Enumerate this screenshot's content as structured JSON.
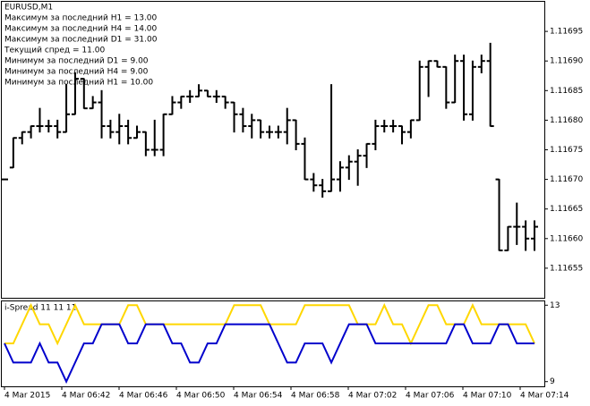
{
  "chart_data": [
    {
      "type": "ohlc",
      "title": "EURUSD,M1",
      "info_lines": [
        "Максимум за последний H1 = 13.00",
        "Максимум за последний H4 = 14.00",
        "Максимум за последний D1 = 31.00",
        "Текущий спред = 11.00",
        "Минимум за последний D1 = 9.00",
        "Минимум за последний H4 = 9.00",
        "Минимум за последний H1 = 10.00"
      ],
      "color": "#000000",
      "open": [
        1.1167,
        1.11672,
        1.11677,
        1.11678,
        1.11679,
        1.11679,
        1.11679,
        1.11678,
        1.11681,
        1.11687,
        1.11682,
        1.11683,
        1.11679,
        1.11678,
        1.11679,
        1.11677,
        1.11678,
        1.11675,
        1.11675,
        1.11681,
        1.11683,
        1.11684,
        1.11684,
        1.11685,
        1.11684,
        1.11684,
        1.11683,
        1.11681,
        1.11679,
        1.1168,
        1.11678,
        1.11678,
        1.11678,
        1.1168,
        1.11676,
        1.1167,
        1.11669,
        1.11668,
        1.1167,
        1.11672,
        1.11673,
        1.11674,
        1.11676,
        1.11679,
        1.11679,
        1.11679,
        1.11678,
        1.1168,
        1.11689,
        1.1169,
        1.11689,
        1.11683,
        1.1169,
        1.11681,
        1.11689,
        1.1169,
        1.1167,
        1.11658,
        1.11662,
        1.11662,
        1.1166
      ],
      "high": [
        1.1167,
        1.11677,
        1.11678,
        1.11679,
        1.11682,
        1.1168,
        1.1168,
        1.11686,
        1.11688,
        1.11687,
        1.11684,
        1.11685,
        1.1168,
        1.11681,
        1.1168,
        1.11679,
        1.11678,
        1.1168,
        1.11681,
        1.11684,
        1.11684,
        1.11685,
        1.11686,
        1.11685,
        1.11685,
        1.11684,
        1.11683,
        1.11682,
        1.11681,
        1.1168,
        1.11679,
        1.11679,
        1.11682,
        1.1168,
        1.11677,
        1.11671,
        1.1167,
        1.11686,
        1.11673,
        1.11674,
        1.11675,
        1.11676,
        1.1168,
        1.1168,
        1.1168,
        1.11679,
        1.1168,
        1.1169,
        1.1169,
        1.1169,
        1.11689,
        1.11691,
        1.11691,
        1.1169,
        1.11691,
        1.11693,
        1.1167,
        1.11662,
        1.11666,
        1.11663,
        1.11663
      ],
      "low": [
        1.1167,
        1.11672,
        1.11676,
        1.11677,
        1.11678,
        1.11678,
        1.11677,
        1.11678,
        1.11681,
        1.11682,
        1.11682,
        1.11677,
        1.11677,
        1.11676,
        1.11676,
        1.11677,
        1.11674,
        1.11674,
        1.11674,
        1.11681,
        1.11682,
        1.11683,
        1.11684,
        1.11684,
        1.11683,
        1.11682,
        1.11678,
        1.11678,
        1.11677,
        1.11677,
        1.11677,
        1.11677,
        1.11676,
        1.11675,
        1.1167,
        1.11668,
        1.11667,
        1.11668,
        1.11668,
        1.1167,
        1.11669,
        1.11672,
        1.11675,
        1.11678,
        1.11678,
        1.11676,
        1.11677,
        1.1168,
        1.11684,
        1.11689,
        1.11682,
        1.11683,
        1.1168,
        1.1168,
        1.11688,
        1.11679,
        1.11658,
        1.11658,
        1.11659,
        1.11658,
        1.11658
      ],
      "close": [
        1.1167,
        1.11677,
        1.11678,
        1.11679,
        1.11679,
        1.11679,
        1.11678,
        1.11681,
        1.11687,
        1.11682,
        1.11683,
        1.11679,
        1.11678,
        1.11679,
        1.11677,
        1.11678,
        1.11675,
        1.11675,
        1.11681,
        1.11683,
        1.11684,
        1.11684,
        1.11685,
        1.11684,
        1.11684,
        1.11683,
        1.11681,
        1.11679,
        1.1168,
        1.11678,
        1.11678,
        1.11678,
        1.1168,
        1.11676,
        1.1167,
        1.11669,
        1.11668,
        1.1167,
        1.11672,
        1.11673,
        1.11674,
        1.11676,
        1.11679,
        1.11679,
        1.11679,
        1.11678,
        1.1168,
        1.11689,
        1.1169,
        1.11689,
        1.11683,
        1.1169,
        1.11681,
        1.11689,
        1.1169,
        1.11679,
        1.11658,
        1.11662,
        1.11662,
        1.1166,
        1.11662
      ],
      "ylim": [
        1.1165,
        1.117
      ],
      "yticks": [
        1.11655,
        {
          "value": 1.1166,
          "label": "1.11660"
        },
        1.11665,
        {
          "value": 1.1167,
          "label": "1.11670"
        },
        1.11675,
        {
          "value": 1.1168,
          "label": "1.11680"
        },
        1.11685,
        {
          "value": 1.1169,
          "label": "1.11690"
        },
        1.11695
      ],
      "time_labels": [
        "4 Mar 2015",
        "4 Mar 06:42",
        "4 Mar 06:46",
        "4 Mar 06:50",
        "4 Mar 06:54",
        "4 Mar 06:58",
        "4 Mar 07:02",
        "4 Mar 07:06",
        "4 Mar 07:10",
        "4 Mar 07:14"
      ]
    },
    {
      "type": "line",
      "title": "i-Spread 11 11 11",
      "series": [
        {
          "color": "#ffd700",
          "values": [
            11,
            11,
            12,
            13,
            12,
            12,
            11,
            12,
            13,
            12,
            12,
            12,
            12,
            12,
            13,
            13,
            12,
            12,
            12,
            12,
            12,
            12,
            12,
            12,
            12,
            12,
            13,
            13,
            13,
            13,
            12,
            12,
            12,
            12,
            13,
            13,
            13,
            13,
            13,
            13,
            12,
            12,
            12,
            13,
            12,
            12,
            11,
            12,
            13,
            13,
            12,
            12,
            12,
            13,
            12,
            12,
            12,
            12,
            12,
            12,
            11
          ]
        },
        {
          "color": "#0000cc",
          "values": [
            11,
            10,
            10,
            10,
            11,
            10,
            10,
            9,
            10,
            11,
            11,
            12,
            12,
            12,
            11,
            11,
            12,
            12,
            12,
            11,
            11,
            10,
            10,
            11,
            11,
            12,
            12,
            12,
            12,
            12,
            12,
            11,
            10,
            10,
            11,
            11,
            11,
            10,
            11,
            12,
            12,
            12,
            11,
            11,
            11,
            11,
            11,
            11,
            11,
            11,
            11,
            12,
            12,
            11,
            11,
            11,
            12,
            12,
            11,
            11,
            11
          ]
        }
      ],
      "ylim": [
        8.8,
        13.2
      ],
      "yticks": [
        13,
        9
      ]
    }
  ]
}
